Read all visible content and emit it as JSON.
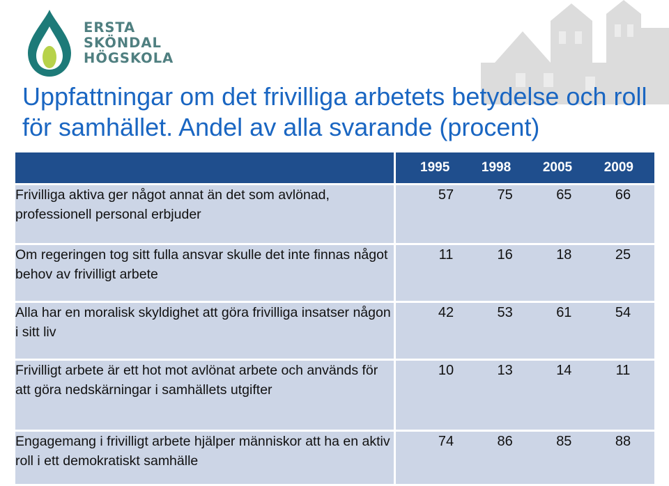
{
  "logo": {
    "lines": [
      "ERSTA",
      "SKÖNDAL",
      "HÖGSKOLA"
    ],
    "colors": {
      "text": "#4f7f80",
      "drop_dark": "#1d7a78",
      "drop_light": "#b7d24a"
    }
  },
  "title": "Uppfattningar om det frivilliga arbetets betydelse och roll för samhället. Andel av alla svarande (procent)",
  "table": {
    "header_bg": "#1f4e8d",
    "row_bg": "#ccd5e6",
    "years": [
      "1995",
      "1998",
      "2005",
      "2009"
    ],
    "rows": [
      {
        "label": "Frivilliga aktiva ger något annat än det som avlönad, professionell personal erbjuder",
        "values": [
          "57",
          "75",
          "65",
          "66"
        ]
      },
      {
        "label": "Om regeringen tog sitt fulla ansvar skulle det inte finnas något behov av frivilligt arbete",
        "values": [
          "11",
          "16",
          "18",
          "25"
        ]
      },
      {
        "label": "Alla har en moralisk skyldighet att göra frivilliga insatser någon i sitt liv",
        "values": [
          "42",
          "53",
          "61",
          "54"
        ]
      },
      {
        "label": "Frivilligt arbete är ett hot mot avlönat arbete och används för att göra nedskärningar i samhällets utgifter",
        "values": [
          "10",
          "13",
          "14",
          "11"
        ]
      },
      {
        "label": "Engagemang i frivilligt arbete hjälper människor att ha en aktiv roll i ett demokratiskt samhälle",
        "values": [
          "74",
          "86",
          "85",
          "88"
        ]
      }
    ]
  }
}
